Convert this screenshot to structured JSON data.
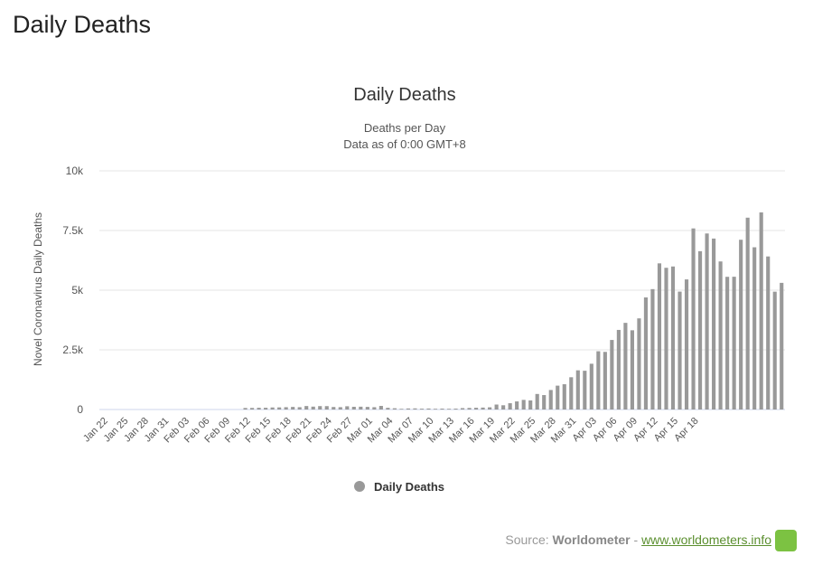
{
  "page_title": "Daily Deaths",
  "source": {
    "prefix": "Source:",
    "name": "Worldometer",
    "separator": "-",
    "link": "www.worldometers.info"
  },
  "colors": {
    "bar": "#999999",
    "grid": "#e6e6e6",
    "axis": "#ccd6eb",
    "logo": "#7cc242"
  },
  "chart_data": {
    "type": "bar",
    "title": "Daily Deaths",
    "subtitle_lines": [
      "Deaths per Day",
      "Data as of 0:00 GMT+8"
    ],
    "ylabel": "Novel Coronavirus Daily Deaths",
    "ylim": [
      0,
      10000
    ],
    "yticks": [
      {
        "value": 0,
        "label": "0"
      },
      {
        "value": 2500,
        "label": "2.5k"
      },
      {
        "value": 5000,
        "label": "5k"
      },
      {
        "value": 7500,
        "label": "7.5k"
      },
      {
        "value": 10000,
        "label": "10k"
      }
    ],
    "grid": true,
    "legend": {
      "position": "bottom-center",
      "entries": [
        "Daily Deaths"
      ]
    },
    "xtick_labels": [
      "Jan 22",
      "Jan 25",
      "Jan 28",
      "Jan 31",
      "Feb 03",
      "Feb 06",
      "Feb 09",
      "Feb 12",
      "Feb 15",
      "Feb 18",
      "Feb 21",
      "Feb 24",
      "Feb 27",
      "Mar 01",
      "Mar 04",
      "Mar 07",
      "Mar 10",
      "Mar 13",
      "Mar 16",
      "Mar 19",
      "Mar 22",
      "Mar 25",
      "Mar 28",
      "Mar 31",
      "Apr 03",
      "Apr 06",
      "Apr 09",
      "Apr 12",
      "Apr 15",
      "Apr 18"
    ],
    "series": [
      {
        "name": "Daily Deaths",
        "values": [
          0,
          0,
          0,
          0,
          0,
          0,
          0,
          0,
          0,
          0,
          0,
          0,
          0,
          0,
          0,
          0,
          0,
          0,
          0,
          0,
          0,
          64,
          66,
          73,
          73,
          86,
          89,
          97,
          108,
          97,
          146,
          121,
          143,
          142,
          105,
          98,
          136,
          114,
          118,
          109,
          97,
          150,
          71,
          52,
          29,
          44,
          47,
          35,
          42,
          31,
          38,
          31,
          37,
          58,
          66,
          73,
          81,
          92,
          208,
          178,
          264,
          340,
          403,
          381,
          651,
          605,
          818,
          1000,
          1059,
          1352,
          1642,
          1624,
          1918,
          2441,
          2414,
          2914,
          3335,
          3631,
          3320,
          3819,
          4696,
          5044,
          6124,
          5938,
          5993,
          4940,
          5451,
          7588,
          6634,
          7376,
          7163,
          6204,
          5560,
          5563,
          7113,
          8038,
          6798,
          8260,
          6413,
          4937,
          5307
        ]
      }
    ]
  }
}
